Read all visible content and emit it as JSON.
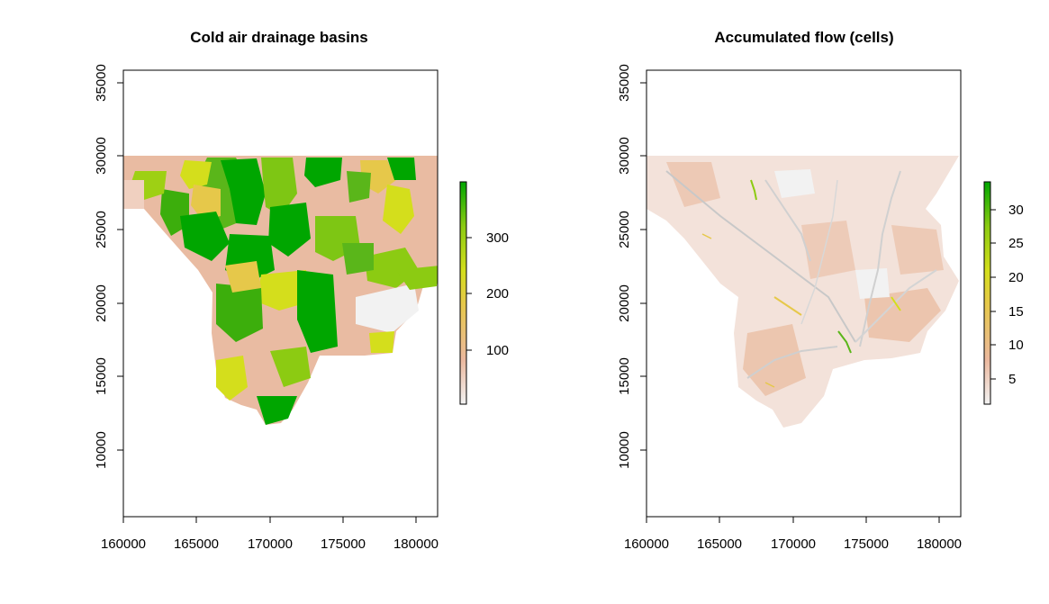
{
  "chart_data": [
    {
      "type": "heatmap",
      "title": "Cold air drainage basins",
      "xlabel": "",
      "ylabel": "",
      "xlim": [
        160000,
        181500
      ],
      "ylim": [
        5500,
        36000
      ],
      "x_ticks": [
        "160000",
        "165000",
        "170000",
        "175000",
        "180000"
      ],
      "y_ticks": [
        "10000",
        "15000",
        "20000",
        "25000",
        "30000",
        "35000"
      ],
      "legend": {
        "position": "right",
        "range": [
          1,
          385
        ],
        "ticks": [
          "100",
          "200",
          "300"
        ],
        "colors": [
          "#F2F2F2",
          "#EBB89E",
          "#E6C84A",
          "#D4DE1C",
          "#8CCB12",
          "#00A600"
        ]
      },
      "grid": false
    },
    {
      "type": "heatmap",
      "title": "Accumulated flow (cells)",
      "xlabel": "",
      "ylabel": "",
      "xlim": [
        160000,
        181500
      ],
      "ylim": [
        5500,
        36000
      ],
      "x_ticks": [
        "160000",
        "165000",
        "170000",
        "175000",
        "180000"
      ],
      "y_ticks": [
        "10000",
        "15000",
        "20000",
        "25000",
        "30000",
        "35000"
      ],
      "legend": {
        "position": "right",
        "range": [
          1,
          34
        ],
        "ticks": [
          "5",
          "10",
          "15",
          "20",
          "25",
          "30"
        ],
        "colors": [
          "#F2F2F2",
          "#EBB89E",
          "#E6C84A",
          "#D4DE1C",
          "#8CCB12",
          "#00A600"
        ]
      },
      "grid": false
    }
  ]
}
